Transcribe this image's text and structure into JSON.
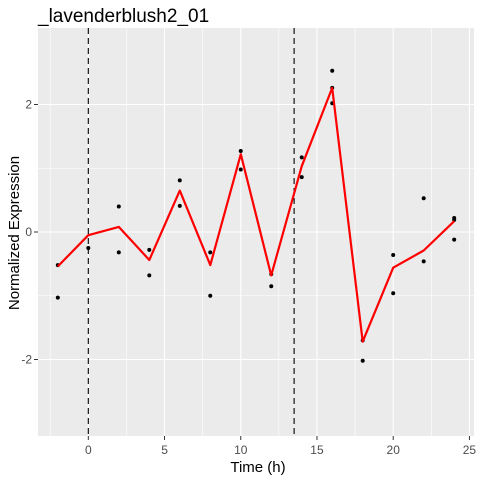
{
  "chart_data": {
    "type": "line",
    "title": "_lavenderblush2_01",
    "xlabel": "Time (h)",
    "ylabel": "Normalized Expression",
    "xlim": [
      -3.3,
      25.3
    ],
    "ylim": [
      -3.2,
      3.2
    ],
    "x_ticks": [
      0,
      5,
      10,
      15,
      20,
      25
    ],
    "y_ticks": [
      -2,
      0,
      2
    ],
    "grid": true,
    "panel_background": "#ebebeb",
    "grid_color": "#ffffff",
    "line_color": "#ff0000",
    "point_color": "#000000",
    "vlines": [
      0,
      13.5
    ],
    "points": {
      "x": [
        -2,
        -2,
        0,
        2,
        2,
        4,
        4,
        6,
        6,
        8,
        8,
        10,
        10,
        12,
        12,
        14,
        14,
        16,
        16,
        16,
        18,
        18,
        20,
        20,
        22,
        22,
        24,
        24,
        24
      ],
      "y": [
        -0.52,
        -1.03,
        -0.25,
        0.4,
        -0.32,
        -0.28,
        -0.68,
        0.81,
        0.41,
        -0.32,
        -1.0,
        1.27,
        0.98,
        -0.66,
        -0.85,
        1.17,
        0.86,
        2.53,
        2.26,
        2.02,
        -1.7,
        -2.02,
        -0.36,
        -0.96,
        0.53,
        -0.46,
        0.22,
        0.19,
        -0.12
      ]
    },
    "series": [
      {
        "x": [
          -2,
          0,
          2,
          4,
          6,
          8,
          10,
          12,
          14,
          16,
          18,
          20,
          22,
          24
        ],
        "values": [
          -0.54,
          -0.05,
          0.08,
          -0.44,
          0.65,
          -0.52,
          1.22,
          -0.68,
          1.03,
          2.26,
          -1.72,
          -0.56,
          -0.29,
          0.17
        ]
      }
    ]
  }
}
